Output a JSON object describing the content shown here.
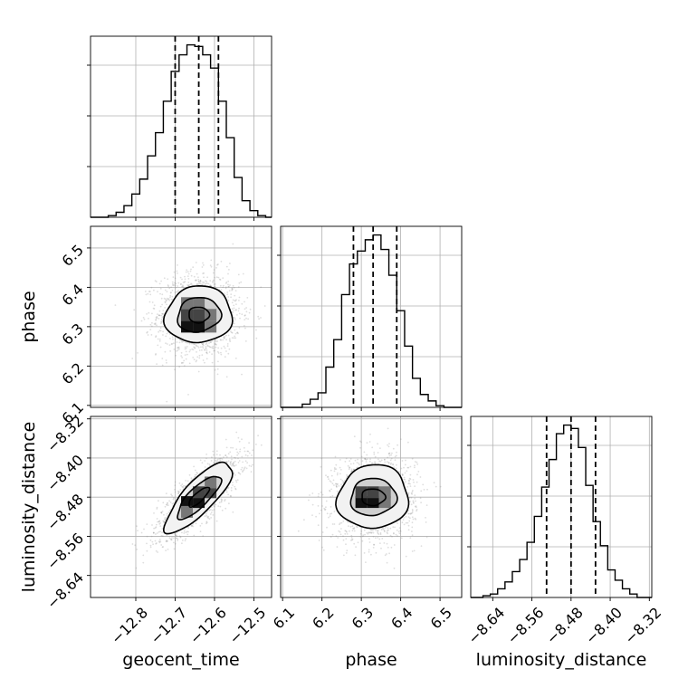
{
  "chart_data": {
    "type": "corner",
    "parameters": [
      "geocent_time",
      "phase",
      "luminosity_distance"
    ],
    "ranges": {
      "geocent_time": [
        -12.915,
        -12.455
      ],
      "phase": [
        6.095,
        6.555
      ],
      "luminosity_distance": [
        -8.685,
        -8.315
      ]
    },
    "ticks": {
      "geocent_time": [
        -12.8,
        -12.7,
        -12.6,
        -12.5
      ],
      "phase": [
        6.1,
        6.2,
        6.3,
        6.4,
        6.5
      ],
      "luminosity_distance": [
        -8.64,
        -8.56,
        -8.48,
        -8.4,
        -8.32
      ]
    },
    "tick_labels": {
      "geocent_time": [
        "−12.8",
        "−12.7",
        "−12.6",
        "−12.5"
      ],
      "phase": [
        "6.1",
        "6.2",
        "6.3",
        "6.4",
        "6.5"
      ],
      "luminosity_distance": [
        "−8.64",
        "−8.56",
        "−8.48",
        "−8.40",
        "−8.32"
      ]
    },
    "quantiles": {
      "geocent_time": [
        -12.7,
        -12.64,
        -12.59
      ],
      "phase": [
        6.28,
        6.33,
        6.39
      ],
      "luminosity_distance": [
        -8.53,
        -8.48,
        -8.43
      ]
    },
    "histograms": {
      "geocent_time": {
        "edges": [
          -12.87,
          -12.85,
          -12.83,
          -12.81,
          -12.79,
          -12.77,
          -12.75,
          -12.73,
          -12.71,
          -12.69,
          -12.67,
          -12.65,
          -12.63,
          -12.61,
          -12.59,
          -12.57,
          -12.55,
          -12.53,
          -12.51,
          -12.49,
          -12.47
        ],
        "counts": [
          1,
          3,
          7,
          14,
          23,
          37,
          51,
          70,
          88,
          98,
          104,
          103,
          98,
          90,
          70,
          48,
          24,
          10,
          4,
          1
        ]
      },
      "phase": {
        "edges": [
          6.15,
          6.17,
          6.19,
          6.21,
          6.23,
          6.25,
          6.27,
          6.29,
          6.31,
          6.33,
          6.35,
          6.37,
          6.39,
          6.41,
          6.43,
          6.45,
          6.47,
          6.49,
          6.51,
          6.53
        ],
        "counts": [
          2,
          5,
          9,
          25,
          42,
          70,
          89,
          97,
          104,
          107,
          98,
          82,
          60,
          38,
          18,
          8,
          4,
          1,
          0
        ]
      },
      "luminosity_distance": {
        "edges": [
          -8.66,
          -8.645,
          -8.63,
          -8.615,
          -8.6,
          -8.585,
          -8.57,
          -8.555,
          -8.54,
          -8.525,
          -8.51,
          -8.495,
          -8.48,
          -8.465,
          -8.45,
          -8.435,
          -8.42,
          -8.405,
          -8.39,
          -8.375,
          -8.36,
          -8.345
        ],
        "counts": [
          1,
          2,
          5,
          9,
          15,
          22,
          32,
          47,
          64,
          80,
          95,
          100,
          98,
          87,
          65,
          44,
          30,
          16,
          10,
          5,
          2
        ]
      }
    },
    "scatter": [
      {
        "x": "geocent_time",
        "y": "phase",
        "center": [
          -12.64,
          6.33
        ],
        "sigma": [
          0.05,
          0.05
        ],
        "rho": 0.0,
        "contours": [
          [
            0.026,
            0.02,
            0.0
          ],
          [
            0.055,
            0.044,
            0.1
          ],
          [
            0.085,
            0.072,
            0.05
          ]
        ],
        "peak_cells": [
          [
            -12.67,
            6.3
          ],
          [
            -12.64,
            6.3
          ],
          [
            -12.67,
            6.33
          ],
          [
            -12.64,
            6.33
          ],
          [
            -12.61,
            6.33
          ],
          [
            -12.64,
            6.36
          ],
          [
            -12.61,
            6.3
          ],
          [
            -12.67,
            6.36
          ]
        ]
      },
      {
        "x": "geocent_time",
        "y": "luminosity_distance",
        "center": [
          -12.64,
          -8.48
        ],
        "sigma": [
          0.05,
          0.04
        ],
        "rho": 0.8,
        "contours": [
          [
            0.026,
            0.02,
            0.8
          ],
          [
            0.055,
            0.044,
            0.8
          ],
          [
            0.085,
            0.072,
            0.8
          ]
        ],
        "peak_cells": [
          [
            -12.67,
            -8.49
          ],
          [
            -12.64,
            -8.49
          ],
          [
            -12.64,
            -8.47
          ],
          [
            -12.61,
            -8.47
          ],
          [
            -12.67,
            -8.51
          ],
          [
            -12.61,
            -8.45
          ]
        ]
      },
      {
        "x": "phase",
        "y": "luminosity_distance",
        "center": [
          6.33,
          -8.48
        ],
        "sigma": [
          0.05,
          0.04
        ],
        "rho": 0.05,
        "contours": [
          [
            0.03,
            0.017,
            0.0
          ],
          [
            0.058,
            0.038,
            0.05
          ],
          [
            0.09,
            0.065,
            0.05
          ]
        ],
        "peak_cells": [
          [
            6.3,
            -8.49
          ],
          [
            6.33,
            -8.49
          ],
          [
            6.33,
            -8.47
          ],
          [
            6.3,
            -8.47
          ],
          [
            6.36,
            -8.49
          ],
          [
            6.36,
            -8.47
          ]
        ]
      }
    ],
    "grid": true,
    "colors": {
      "line": "#000000",
      "grid": "#b0b0b0",
      "points": "#888888"
    }
  }
}
